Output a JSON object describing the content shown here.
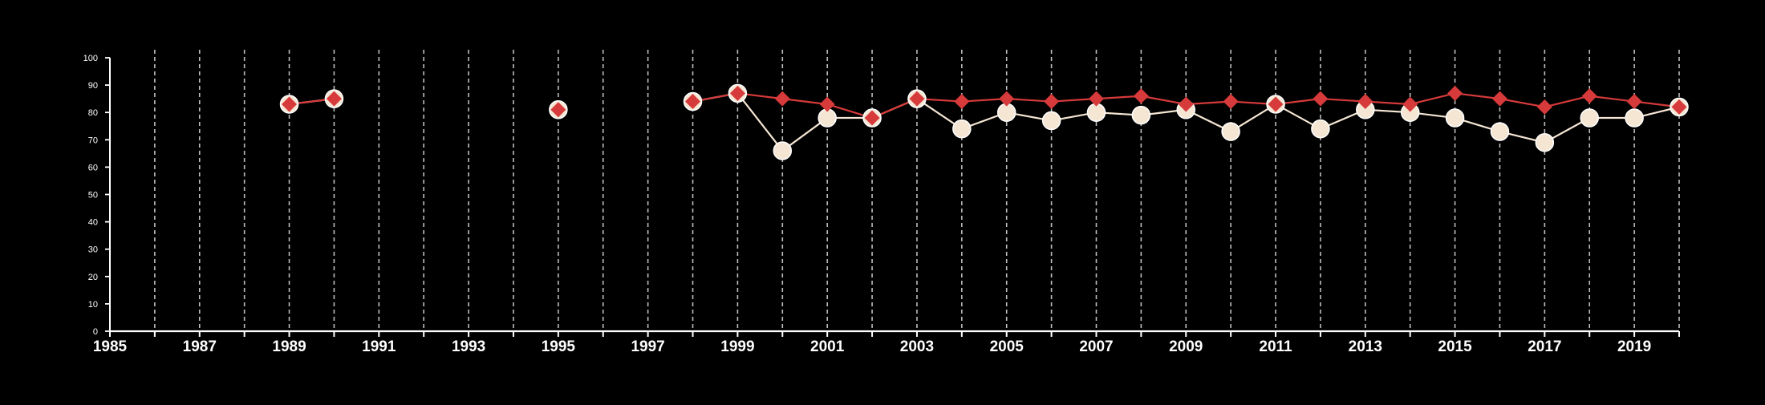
{
  "chart_data": {
    "type": "line",
    "title": "",
    "xlabel": "",
    "ylabel": "",
    "xlim": [
      1985,
      2020
    ],
    "ylim": [
      0,
      100
    ],
    "x_ticks": [
      1985,
      1987,
      1989,
      1991,
      1993,
      1995,
      1997,
      1999,
      2001,
      2003,
      2005,
      2007,
      2009,
      2011,
      2013,
      2015,
      2017,
      2019
    ],
    "y_ticks": [
      0,
      10,
      20,
      30,
      40,
      50,
      60,
      70,
      80,
      90,
      100
    ],
    "vertical_grid_years": [
      1986,
      1987,
      1988,
      1989,
      1990,
      1991,
      1992,
      1993,
      1994,
      1995,
      1996,
      1997,
      1998,
      1999,
      2000,
      2001,
      2002,
      2003,
      2004,
      2005,
      2006,
      2007,
      2008,
      2009,
      2010,
      2011,
      2012,
      2013,
      2014,
      2015,
      2016,
      2017,
      2018,
      2019,
      2020
    ],
    "grid": "vertical dashed",
    "background": "#000000",
    "series": [
      {
        "color": "#f5e6d3",
        "marker": "circle",
        "points": [
          {
            "x": 1989,
            "y": 83
          },
          {
            "x": 1990,
            "y": 85
          },
          {
            "x": 1995,
            "y": 81
          },
          {
            "x": 1998,
            "y": 84
          },
          {
            "x": 1999,
            "y": 87
          },
          {
            "x": 2000,
            "y": 66
          },
          {
            "x": 2001,
            "y": 78
          },
          {
            "x": 2002,
            "y": 78
          },
          {
            "x": 2003,
            "y": 85
          },
          {
            "x": 2004,
            "y": 74
          },
          {
            "x": 2005,
            "y": 80
          },
          {
            "x": 2006,
            "y": 77
          },
          {
            "x": 2007,
            "y": 80
          },
          {
            "x": 2008,
            "y": 79
          },
          {
            "x": 2009,
            "y": 81
          },
          {
            "x": 2010,
            "y": 73
          },
          {
            "x": 2011,
            "y": 83
          },
          {
            "x": 2012,
            "y": 74
          },
          {
            "x": 2013,
            "y": 81
          },
          {
            "x": 2014,
            "y": 80
          },
          {
            "x": 2015,
            "y": 78
          },
          {
            "x": 2016,
            "y": 73
          },
          {
            "x": 2017,
            "y": 69
          },
          {
            "x": 2018,
            "y": 78
          },
          {
            "x": 2019,
            "y": 78
          },
          {
            "x": 2020,
            "y": 82
          }
        ]
      },
      {
        "color": "#d63a3a",
        "marker": "diamond",
        "points": [
          {
            "x": 1989,
            "y": 83
          },
          {
            "x": 1990,
            "y": 85
          },
          {
            "x": 1995,
            "y": 81
          },
          {
            "x": 1998,
            "y": 84
          },
          {
            "x": 1999,
            "y": 87
          },
          {
            "x": 2000,
            "y": 85
          },
          {
            "x": 2001,
            "y": 83
          },
          {
            "x": 2002,
            "y": 78
          },
          {
            "x": 2003,
            "y": 85
          },
          {
            "x": 2004,
            "y": 84
          },
          {
            "x": 2005,
            "y": 85
          },
          {
            "x": 2006,
            "y": 84
          },
          {
            "x": 2007,
            "y": 85
          },
          {
            "x": 2008,
            "y": 86
          },
          {
            "x": 2009,
            "y": 83
          },
          {
            "x": 2010,
            "y": 84
          },
          {
            "x": 2011,
            "y": 83
          },
          {
            "x": 2012,
            "y": 85
          },
          {
            "x": 2013,
            "y": 84
          },
          {
            "x": 2014,
            "y": 83
          },
          {
            "x": 2015,
            "y": 87
          },
          {
            "x": 2016,
            "y": 85
          },
          {
            "x": 2017,
            "y": 82
          },
          {
            "x": 2018,
            "y": 86
          },
          {
            "x": 2019,
            "y": 84
          },
          {
            "x": 2020,
            "y": 82
          }
        ]
      }
    ]
  }
}
